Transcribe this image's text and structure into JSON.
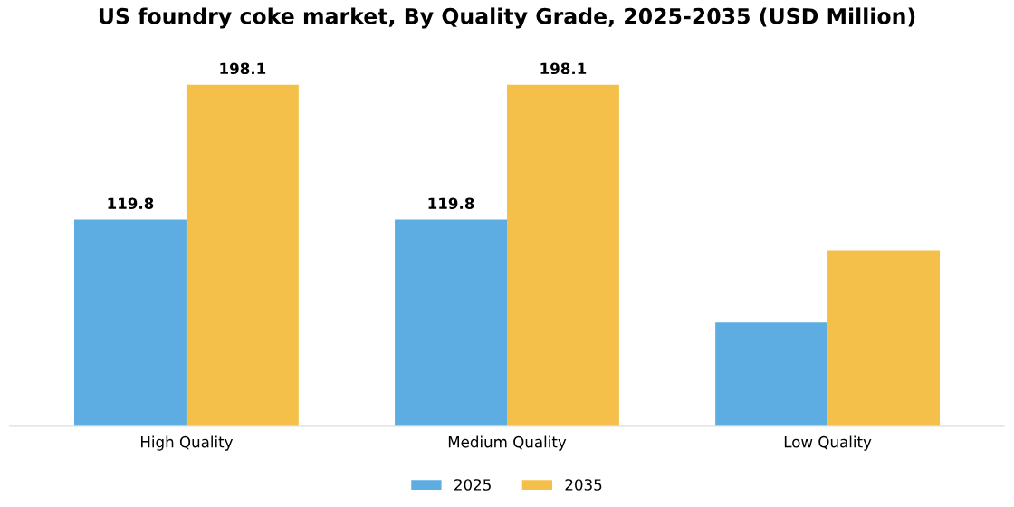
{
  "chart_data": {
    "type": "bar",
    "title": "US foundry coke market, By Quality Grade, 2025-2035 (USD Million)",
    "categories": [
      "High Quality",
      "Medium Quality",
      "Low Quality"
    ],
    "series": [
      {
        "name": "2025",
        "color": "#5dade2",
        "values": [
          119.8,
          119.8,
          60
        ],
        "value_labels": [
          "119.8",
          "119.8",
          null
        ]
      },
      {
        "name": "2035",
        "color": "#f5c04a",
        "values": [
          198.1,
          198.1,
          102
        ],
        "value_labels": [
          "198.1",
          "198.1",
          null
        ]
      }
    ],
    "legend": "bottom",
    "grid": false
  }
}
